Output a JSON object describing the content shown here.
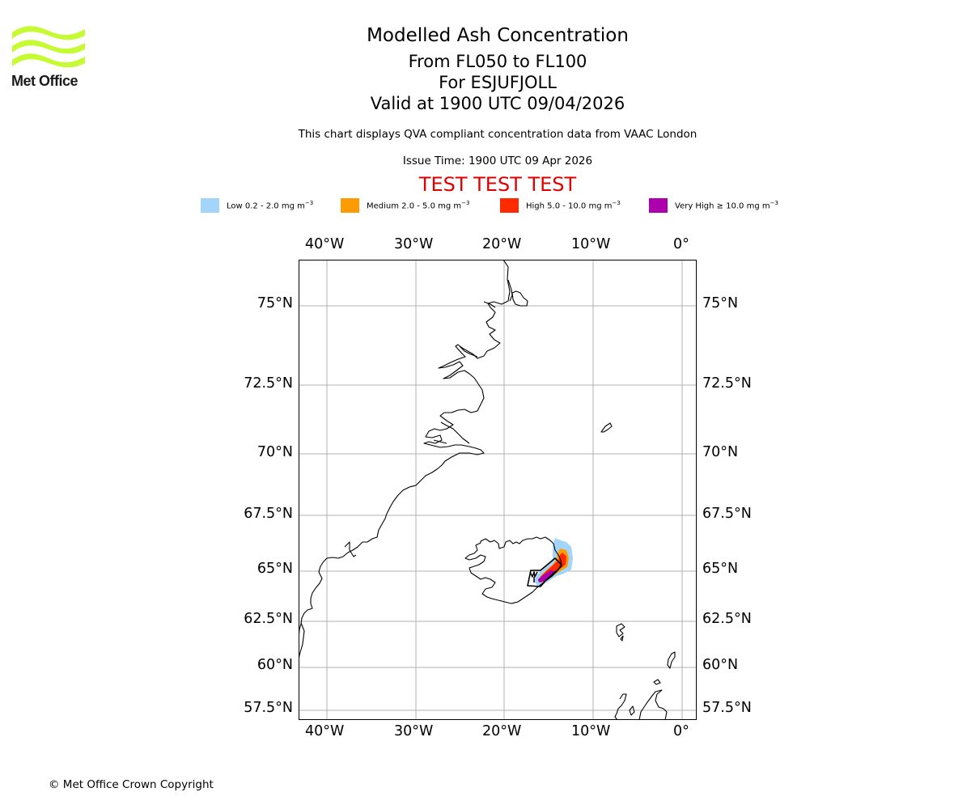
{
  "header": {
    "logo_text": "Met Office",
    "title": "Modelled Ash Concentration",
    "subtitle_levels": "From FL050 to FL100",
    "subtitle_volcano": "For ESJUFJOLL",
    "subtitle_valid": "Valid at 1900 UTC 09/04/2026",
    "description": "This chart displays QVA compliant concentration data from VAAC London",
    "issue_time": "Issue Time: 1900 UTC 09 Apr 2026",
    "test_banner": "TEST TEST TEST"
  },
  "legend": [
    {
      "label": "Low 0.2 - 2.0 mg m",
      "exp": "−3",
      "color": "#a3d4fa"
    },
    {
      "label": "Medium 2.0 - 5.0 mg m",
      "exp": "−3",
      "color": "#fd9b04"
    },
    {
      "label": "High 5.0 - 10.0 mg m",
      "exp": "−3",
      "color": "#ff2a01"
    },
    {
      "label": "Very High  ≥  10.0 mg m",
      "exp": "−3",
      "color": "#ad00ad"
    }
  ],
  "map": {
    "longitude_labels": [
      "40°W",
      "30°W",
      "20°W",
      "10°W",
      "0°"
    ],
    "latitude_labels": [
      "75°N",
      "72.5°N",
      "70°N",
      "67.5°N",
      "65°N",
      "62.5°N",
      "60°N",
      "57.5°N"
    ],
    "colors": {
      "grid": "#b0b0b0",
      "coast": "#000000",
      "low": "#a3d4fa",
      "medium": "#fd9b04",
      "high": "#ff2a01",
      "very_high": "#ad00ad"
    }
  },
  "footer": {
    "copyright": "© Met Office Crown Copyright"
  }
}
